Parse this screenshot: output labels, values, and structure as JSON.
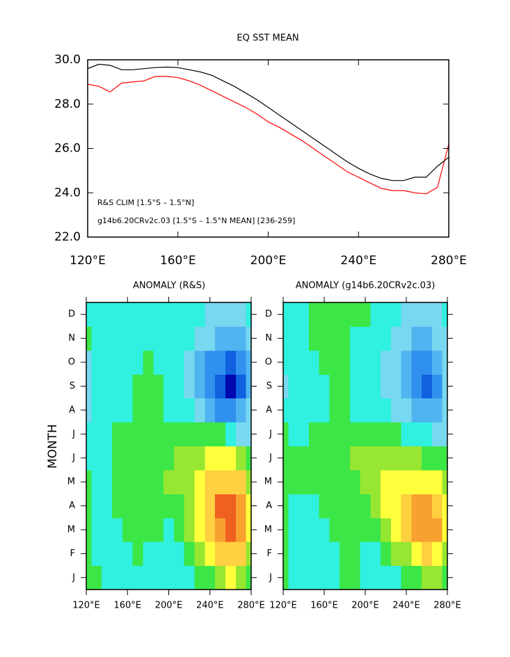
{
  "chart_data": [
    {
      "type": "line",
      "title": "EQ SST MEAN",
      "x": [
        120,
        125,
        130,
        135,
        140,
        145,
        150,
        155,
        160,
        165,
        170,
        175,
        180,
        185,
        190,
        195,
        200,
        205,
        210,
        215,
        220,
        225,
        230,
        235,
        240,
        245,
        250,
        255,
        260,
        265,
        270,
        275,
        280
      ],
      "series": [
        {
          "name": "R&S CLIM [1.5°S – 1.5°N]",
          "color": "#ff0000",
          "values": [
            28.9,
            28.8,
            28.55,
            28.95,
            29.0,
            29.05,
            29.25,
            29.25,
            29.2,
            29.05,
            28.85,
            28.6,
            28.35,
            28.1,
            27.85,
            27.55,
            27.2,
            26.95,
            26.65,
            26.35,
            26.0,
            25.65,
            25.3,
            24.95,
            24.7,
            24.45,
            24.2,
            24.1,
            24.1,
            24.0,
            23.95,
            24.25,
            26.2
          ]
        },
        {
          "name": "g14b6.20CRv2c.03 [1.5°S – 1.5°N MEAN] [236-259]",
          "color": "#000000",
          "values": [
            29.6,
            29.8,
            29.75,
            29.55,
            29.55,
            29.6,
            29.65,
            29.67,
            29.65,
            29.55,
            29.45,
            29.3,
            29.05,
            28.8,
            28.5,
            28.2,
            27.85,
            27.5,
            27.15,
            26.8,
            26.45,
            26.1,
            25.75,
            25.4,
            25.1,
            24.85,
            24.65,
            24.55,
            24.55,
            24.7,
            24.7,
            25.2,
            25.6
          ]
        }
      ],
      "xlim": [
        120,
        280
      ],
      "xticks": [
        {
          "value": 120,
          "label": "120°E"
        },
        {
          "value": 160,
          "label": "160°E"
        },
        {
          "value": 200,
          "label": "200°E"
        },
        {
          "value": 240,
          "label": "240°E"
        },
        {
          "value": 280,
          "label": "280°E"
        }
      ],
      "ylim": [
        22,
        30
      ],
      "yticks": [
        {
          "value": 22,
          "label": "22.0"
        },
        {
          "value": 24,
          "label": "24.0"
        },
        {
          "value": 26,
          "label": "26.0"
        },
        {
          "value": 28,
          "label": "28.0"
        },
        {
          "value": 30,
          "label": "30.0"
        }
      ]
    },
    {
      "type": "contour",
      "title": "ANOMALY (R&S)",
      "ylabel": "MONTH",
      "x": [
        120,
        130,
        140,
        150,
        160,
        170,
        180,
        190,
        200,
        210,
        220,
        230,
        240,
        250,
        260,
        270,
        280
      ],
      "y": [
        "J",
        "F",
        "M",
        "A",
        "M",
        "J",
        "J",
        "A",
        "S",
        "O",
        "N",
        "D"
      ],
      "z": [
        [
          0.3,
          0,
          -0.3,
          -0.2,
          -0.2,
          -0.1,
          -0.1,
          -0.3,
          -0.3,
          -0.3,
          -0.2,
          0,
          0.2,
          0.5,
          0.8,
          0.6,
          0.3
        ],
        [
          0.3,
          -0.1,
          -0.3,
          -0.2,
          -0.1,
          0,
          -0.1,
          -0.2,
          -0.2,
          -0.1,
          0.1,
          0.4,
          0.8,
          1.2,
          1.5,
          1.2,
          0.6
        ],
        [
          0.2,
          -0.1,
          -0.2,
          -0.1,
          0,
          0.1,
          0.1,
          0,
          -0.1,
          0.1,
          0.4,
          0.8,
          1.3,
          1.8,
          2.3,
          1.8,
          0.8
        ],
        [
          0.1,
          -0.1,
          -0.2,
          0,
          0.1,
          0.2,
          0.2,
          0.2,
          0.2,
          0.3,
          0.6,
          1.0,
          1.5,
          2.0,
          2.2,
          1.8,
          0.9
        ],
        [
          0,
          -0.2,
          -0.1,
          0,
          0.1,
          0.2,
          0.3,
          0.3,
          0.4,
          0.5,
          0.7,
          1.0,
          1.2,
          1.5,
          1.5,
          1.2,
          0.7
        ],
        [
          -0.1,
          -0.2,
          -0.1,
          0,
          0.1,
          0.2,
          0.2,
          0.2,
          0.3,
          0.4,
          0.6,
          0.7,
          0.8,
          0.9,
          0.8,
          0.7,
          0.3
        ],
        [
          -0.3,
          -0.3,
          -0.2,
          0,
          0.1,
          0.2,
          0.2,
          0.1,
          0.2,
          0.3,
          0.3,
          0.3,
          0.2,
          0.1,
          -0.2,
          -0.5,
          -0.6
        ],
        [
          -0.6,
          -0.4,
          -0.2,
          -0.1,
          -0.1,
          0,
          0.1,
          0,
          -0.1,
          -0.1,
          -0.2,
          -0.5,
          -0.9,
          -1.3,
          -1.4,
          -1.1,
          -0.8
        ],
        [
          -0.7,
          -0.4,
          -0.2,
          -0.2,
          -0.1,
          0,
          0.1,
          0,
          -0.2,
          -0.3,
          -0.5,
          -0.9,
          -1.4,
          -1.9,
          -2.5,
          -1.8,
          -1.0
        ],
        [
          -0.5,
          -0.3,
          -0.2,
          -0.2,
          -0.2,
          -0.1,
          0,
          -0.1,
          -0.2,
          -0.3,
          -0.5,
          -0.9,
          -1.3,
          -1.6,
          -1.7,
          -1.4,
          -0.9
        ],
        [
          0.2,
          -0.1,
          -0.2,
          -0.2,
          -0.2,
          -0.1,
          -0.1,
          -0.2,
          -0.2,
          -0.3,
          -0.4,
          -0.6,
          -0.8,
          -1.0,
          -1.1,
          -0.9,
          -0.6
        ],
        [
          -0.2,
          -0.1,
          -0.2,
          -0.3,
          -0.2,
          -0.2,
          -0.3,
          -0.3,
          -0.3,
          -0.3,
          -0.3,
          -0.4,
          -0.5,
          -0.6,
          -0.6,
          -0.5,
          -0.4
        ]
      ],
      "xlim": [
        120,
        280
      ],
      "xticks": [
        {
          "value": 120,
          "label": "120°E"
        },
        {
          "value": 160,
          "label": "160°E"
        },
        {
          "value": 200,
          "label": "200°E"
        },
        {
          "value": 240,
          "label": "240°E"
        },
        {
          "value": 280,
          "label": "280°E"
        }
      ],
      "levels": [
        -2.4,
        -2,
        -1.6,
        -1.2,
        -0.8,
        -0.4,
        0,
        0.4,
        0.8,
        1.2,
        1.6,
        2,
        2.4
      ],
      "colors": [
        "#0008b0",
        "#0028d0",
        "#1060e0",
        "#3090ee",
        "#50b4f0",
        "#78d8f0",
        "#30f0e0",
        "#3ce646",
        "#96e632",
        "#ffff3c",
        "#ffd040",
        "#f8a030",
        "#f06020",
        "#e81010"
      ]
    },
    {
      "type": "contour",
      "title": "ANOMALY (g14b6.20CRv2c.03)",
      "x": [
        120,
        130,
        140,
        150,
        160,
        170,
        180,
        190,
        200,
        210,
        220,
        230,
        240,
        250,
        260,
        270,
        280
      ],
      "y": [
        "J",
        "F",
        "M",
        "A",
        "M",
        "J",
        "J",
        "A",
        "S",
        "O",
        "N",
        "D"
      ],
      "z": [
        [
          0,
          -0.2,
          -0.3,
          -0.3,
          -0.2,
          -0.2,
          0.1,
          0.2,
          -0.1,
          -0.2,
          -0.2,
          -0.1,
          0.1,
          0.3,
          0.5,
          0.5,
          0.2
        ],
        [
          0,
          -0.2,
          -0.3,
          -0.3,
          -0.2,
          -0.1,
          0,
          0,
          -0.1,
          -0.1,
          0.1,
          0.4,
          0.7,
          1.0,
          1.2,
          1.0,
          0.5
        ],
        [
          0,
          -0.2,
          -0.2,
          -0.2,
          -0.1,
          0,
          0,
          0,
          0.1,
          0.2,
          0.5,
          0.9,
          1.3,
          1.6,
          1.9,
          1.6,
          0.8
        ],
        [
          0,
          -0.1,
          -0.1,
          -0.1,
          0,
          0,
          0.1,
          0.1,
          0.2,
          0.4,
          0.8,
          1.1,
          1.4,
          1.6,
          1.7,
          1.5,
          0.8
        ],
        [
          0.1,
          0,
          0,
          0,
          0,
          0.1,
          0.2,
          0.3,
          0.4,
          0.6,
          0.9,
          1.0,
          1.1,
          1.1,
          1.0,
          0.9,
          0.5
        ],
        [
          0.2,
          0.1,
          0.1,
          0.1,
          0.2,
          0.3,
          0.3,
          0.4,
          0.5,
          0.6,
          0.6,
          0.6,
          0.5,
          0.4,
          0.3,
          0.2,
          0
        ],
        [
          0,
          -0.1,
          -0.1,
          0,
          0.1,
          0.2,
          0.2,
          0.2,
          0.2,
          0.2,
          0.1,
          0,
          -0.1,
          -0.2,
          -0.4,
          -0.5,
          -0.5
        ],
        [
          -0.4,
          -0.3,
          -0.2,
          -0.1,
          -0.1,
          0,
          0,
          -0.1,
          -0.2,
          -0.3,
          -0.4,
          -0.6,
          -0.8,
          -1.0,
          -1.1,
          -0.9,
          -0.6
        ],
        [
          -0.5,
          -0.3,
          -0.2,
          -0.1,
          -0.1,
          0,
          0,
          -0.1,
          -0.2,
          -0.3,
          -0.5,
          -0.8,
          -1.2,
          -1.5,
          -1.7,
          -1.4,
          -0.8
        ],
        [
          -0.3,
          -0.2,
          -0.1,
          -0.1,
          0,
          0,
          0,
          -0.1,
          -0.2,
          -0.3,
          -0.5,
          -0.8,
          -1.1,
          -1.3,
          -1.3,
          -1.1,
          -0.7
        ],
        [
          -0.2,
          -0.2,
          -0.1,
          0,
          0,
          0,
          0,
          -0.1,
          -0.2,
          -0.3,
          -0.4,
          -0.6,
          -0.8,
          -0.9,
          -0.9,
          -0.7,
          -0.5
        ],
        [
          -0.1,
          -0.2,
          -0.1,
          0,
          0.1,
          0.1,
          0.2,
          0.3,
          0.1,
          -0.1,
          -0.2,
          -0.3,
          -0.5,
          -0.6,
          -0.6,
          -0.5,
          -0.3
        ]
      ],
      "xlim": [
        120,
        280
      ],
      "xticks": [
        {
          "value": 120,
          "label": "120°E"
        },
        {
          "value": 160,
          "label": "160°E"
        },
        {
          "value": 200,
          "label": "200°E"
        },
        {
          "value": 240,
          "label": "240°E"
        },
        {
          "value": 280,
          "label": "280°E"
        }
      ],
      "levels": [
        -2.4,
        -2,
        -1.6,
        -1.2,
        -0.8,
        -0.4,
        0,
        0.4,
        0.8,
        1.2,
        1.6,
        2,
        2.4
      ],
      "colors": [
        "#0008b0",
        "#0028d0",
        "#1060e0",
        "#3090ee",
        "#50b4f0",
        "#78d8f0",
        "#30f0e0",
        "#3ce646",
        "#96e632",
        "#ffff3c",
        "#ffd040",
        "#f8a030",
        "#f06020",
        "#e81010"
      ]
    }
  ]
}
